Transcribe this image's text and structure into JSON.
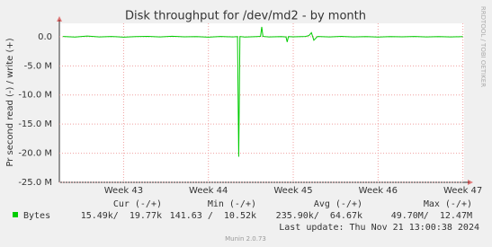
{
  "chart_data": {
    "type": "line",
    "title": "Disk throughput for /dev/md2 - by month",
    "y_label": "Pr second read (-) / write (+)",
    "side_label": "RRDTOOL / TOBI OETIKER",
    "x": [
      -5,
      -4,
      -3,
      -2,
      -1,
      0,
      1,
      2,
      3,
      4,
      5,
      6,
      7,
      8,
      9,
      9.4,
      9.5,
      9.6,
      10,
      11,
      11.3,
      11.4,
      11.5,
      12,
      13,
      13.4,
      13.5,
      13.6,
      14,
      15,
      15.3,
      15.5,
      15.7,
      16,
      17,
      18,
      19,
      20,
      21,
      22,
      23,
      24,
      25,
      26,
      27,
      28
    ],
    "series": [
      {
        "name": "Bytes",
        "color": "#00cc00",
        "values": [
          40000,
          -60000,
          120000,
          -30000,
          50000,
          -80000,
          20000,
          60000,
          -40000,
          90000,
          -20000,
          30000,
          -70000,
          50000,
          -30000,
          20000,
          -20600000,
          40000,
          -50000,
          30000,
          60000,
          1700000,
          50000,
          -40000,
          20000,
          -30000,
          -900000,
          30000,
          -20000,
          40000,
          200000,
          700000,
          -600000,
          50000,
          -30000,
          60000,
          -40000,
          20000,
          -50000,
          30000,
          -20000,
          40000,
          -30000,
          20000,
          -40000,
          30000
        ]
      }
    ],
    "xlim": [
      -5.3,
      28.1
    ],
    "xticks": [
      {
        "value": 0,
        "label": "Week 43"
      },
      {
        "value": 7,
        "label": "Week 44"
      },
      {
        "value": 14,
        "label": "Week 45"
      },
      {
        "value": 21,
        "label": "Week 46"
      },
      {
        "value": 28,
        "label": "Week 47"
      }
    ],
    "ylim": [
      -25000000,
      2300000
    ],
    "yticks": [
      {
        "value": 0,
        "label": "0.0"
      },
      {
        "value": -5000000,
        "label": "-5.0 M"
      },
      {
        "value": -10000000,
        "label": "-10.0 M"
      },
      {
        "value": -15000000,
        "label": "-15.0 M"
      },
      {
        "value": -20000000,
        "label": "-20.0 M"
      },
      {
        "value": -25000000,
        "label": "-25.0 M"
      }
    ],
    "grid": true,
    "stats": {
      "headers": [
        "Cur (-/+)",
        "Min (-/+)",
        "Avg (-/+)",
        "Max (-/+)"
      ],
      "values": [
        "15.49k/  19.77k",
        "141.63 /  10.52k",
        "235.90k/  64.67k",
        "49.70M/  12.47M"
      ]
    },
    "last_update": "Last update: Thu Nov 21 13:00:38 2024",
    "footer": "Munin 2.0.73"
  }
}
